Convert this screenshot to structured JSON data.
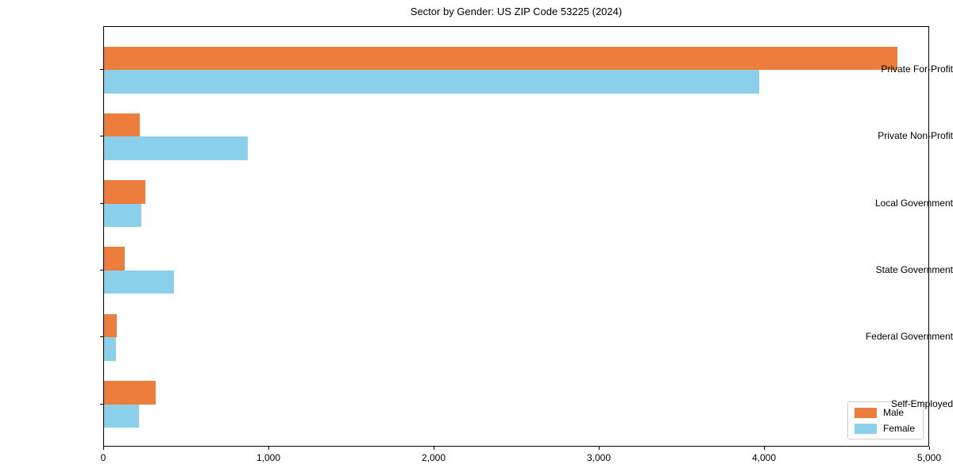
{
  "title": "Sector by Gender: US ZIP Code 53225 (2024)",
  "colors": {
    "male": "#ec7d3c",
    "female": "#8bd0ea",
    "axis": "#000000",
    "background": "#ffffff",
    "legend_border": "#cccccc"
  },
  "legend": {
    "position": "lower right",
    "items": [
      {
        "label": "Male",
        "color": "#ec7d3c"
      },
      {
        "label": "Female",
        "color": "#8bd0ea"
      }
    ]
  },
  "chart_data": {
    "type": "bar",
    "orientation": "horizontal",
    "title": "Sector by Gender: US ZIP Code 53225 (2024)",
    "categories": [
      "Private For-Profit",
      "Private Non-Profit",
      "Local Government",
      "State Government",
      "Federal Government",
      "Self-Employed"
    ],
    "series": [
      {
        "name": "Male",
        "color": "#ec7d3c",
        "values": [
          4810,
          215,
          250,
          125,
          75,
          315
        ]
      },
      {
        "name": "Female",
        "color": "#8bd0ea",
        "values": [
          3975,
          870,
          225,
          425,
          70,
          210
        ]
      }
    ],
    "xlabel": "",
    "ylabel": "",
    "xlim": [
      0,
      5000
    ],
    "xticks": [
      0,
      1000,
      2000,
      3000,
      4000,
      5000
    ],
    "xtick_labels": [
      "0",
      "1,000",
      "2,000",
      "3,000",
      "4,000",
      "5,000"
    ],
    "grid": false,
    "legend_position": "lower right"
  }
}
